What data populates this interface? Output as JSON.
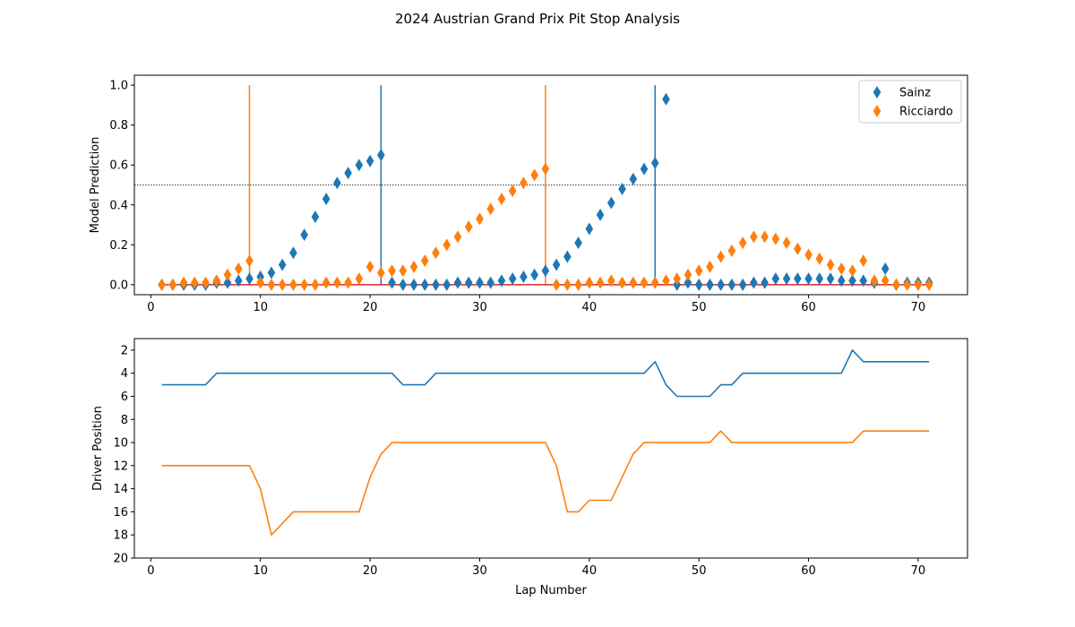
{
  "figure": {
    "title": "2024 Austrian Grand Prix Pit Stop Analysis"
  },
  "colors": {
    "sainz": "#1f77b4",
    "ricciardo": "#ff7f0e",
    "baseline": "#d62728",
    "threshold": "#000000"
  },
  "chart_data": [
    {
      "type": "scatter",
      "title": "",
      "xlabel": "",
      "ylabel": "Model Prediction",
      "xlim": [
        -1.5,
        74.5
      ],
      "ylim": [
        -0.05,
        1.05
      ],
      "x_ticks": [
        "0",
        "10",
        "20",
        "30",
        "40",
        "50",
        "60",
        "70"
      ],
      "y_ticks": [
        "0.0",
        "0.2",
        "0.4",
        "0.6",
        "0.8",
        "1.0"
      ],
      "threshold": 0.5,
      "legend_position": "top-right",
      "x": [
        1,
        2,
        3,
        4,
        5,
        6,
        7,
        8,
        9,
        10,
        11,
        12,
        13,
        14,
        15,
        16,
        17,
        18,
        19,
        20,
        21,
        22,
        23,
        24,
        25,
        26,
        27,
        28,
        29,
        30,
        31,
        32,
        33,
        34,
        35,
        36,
        37,
        38,
        39,
        40,
        41,
        42,
        43,
        44,
        45,
        46,
        47,
        48,
        49,
        50,
        51,
        52,
        53,
        54,
        55,
        56,
        57,
        58,
        59,
        60,
        61,
        62,
        63,
        64,
        65,
        66,
        67,
        68,
        69,
        70,
        71
      ],
      "series": [
        {
          "name": "Sainz",
          "color_key": "sainz",
          "pit_laps": [
            21,
            46
          ],
          "values": [
            0.0,
            0.0,
            0.0,
            0.0,
            0.0,
            0.01,
            0.01,
            0.02,
            0.03,
            0.04,
            0.06,
            0.1,
            0.16,
            0.25,
            0.34,
            0.43,
            0.51,
            0.56,
            0.6,
            0.62,
            0.65,
            0.01,
            0.0,
            0.0,
            0.0,
            0.0,
            0.0,
            0.01,
            0.01,
            0.01,
            0.01,
            0.02,
            0.03,
            0.04,
            0.05,
            0.07,
            0.1,
            0.14,
            0.21,
            0.28,
            0.35,
            0.41,
            0.48,
            0.53,
            0.58,
            0.61,
            0.93,
            0.0,
            0.01,
            0.0,
            0.0,
            0.0,
            0.0,
            0.0,
            0.01,
            0.01,
            0.03,
            0.03,
            0.03,
            0.03,
            0.03,
            0.03,
            0.02,
            0.02,
            0.02,
            0.01,
            0.08,
            0.0,
            0.01,
            0.01,
            0.01
          ]
        },
        {
          "name": "Ricciardo",
          "color_key": "ricciardo",
          "pit_laps": [
            9,
            36
          ],
          "values": [
            0.0,
            0.0,
            0.01,
            0.01,
            0.01,
            0.02,
            0.05,
            0.08,
            0.12,
            0.01,
            0.0,
            0.0,
            0.0,
            0.0,
            0.0,
            0.01,
            0.01,
            0.01,
            0.03,
            0.09,
            0.06,
            0.07,
            0.07,
            0.09,
            0.12,
            0.16,
            0.2,
            0.24,
            0.29,
            0.33,
            0.38,
            0.43,
            0.47,
            0.51,
            0.55,
            0.58,
            0.0,
            0.0,
            0.0,
            0.01,
            0.01,
            0.02,
            0.01,
            0.01,
            0.01,
            0.01,
            0.02,
            0.03,
            0.05,
            0.07,
            0.09,
            0.14,
            0.17,
            0.21,
            0.24,
            0.24,
            0.23,
            0.21,
            0.18,
            0.15,
            0.13,
            0.1,
            0.08,
            0.07,
            0.12,
            0.02,
            0.02,
            0.0,
            0.0,
            0.0,
            0.0
          ]
        }
      ]
    },
    {
      "type": "line",
      "title": "",
      "xlabel": "Lap Number",
      "ylabel": "Driver Position",
      "xlim": [
        -1.5,
        74.5
      ],
      "ylim": [
        20,
        1
      ],
      "x_ticks": [
        "0",
        "10",
        "20",
        "30",
        "40",
        "50",
        "60",
        "70"
      ],
      "y_ticks": [
        "2",
        "4",
        "6",
        "8",
        "10",
        "12",
        "14",
        "16",
        "18",
        "20"
      ],
      "x": [
        1,
        2,
        3,
        4,
        5,
        6,
        7,
        8,
        9,
        10,
        11,
        12,
        13,
        14,
        15,
        16,
        17,
        18,
        19,
        20,
        21,
        22,
        23,
        24,
        25,
        26,
        27,
        28,
        29,
        30,
        31,
        32,
        33,
        34,
        35,
        36,
        37,
        38,
        39,
        40,
        41,
        42,
        43,
        44,
        45,
        46,
        47,
        48,
        49,
        50,
        51,
        52,
        53,
        54,
        55,
        56,
        57,
        58,
        59,
        60,
        61,
        62,
        63,
        64,
        65,
        66,
        67,
        68,
        69,
        70,
        71
      ],
      "series": [
        {
          "color_key": "sainz",
          "values": [
            5,
            5,
            5,
            5,
            5,
            4,
            4,
            4,
            4,
            4,
            4,
            4,
            4,
            4,
            4,
            4,
            4,
            4,
            4,
            4,
            4,
            4,
            5,
            5,
            5,
            4,
            4,
            4,
            4,
            4,
            4,
            4,
            4,
            4,
            4,
            4,
            4,
            4,
            4,
            4,
            4,
            4,
            4,
            4,
            4,
            3,
            5,
            6,
            6,
            6,
            6,
            5,
            5,
            4,
            4,
            4,
            4,
            4,
            4,
            4,
            4,
            4,
            4,
            2,
            3,
            3,
            3,
            3,
            3,
            3,
            3
          ]
        },
        {
          "color_key": "ricciardo",
          "values": [
            12,
            12,
            12,
            12,
            12,
            12,
            12,
            12,
            12,
            14,
            18,
            17,
            16,
            16,
            16,
            16,
            16,
            16,
            16,
            13,
            11,
            10,
            10,
            10,
            10,
            10,
            10,
            10,
            10,
            10,
            10,
            10,
            10,
            10,
            10,
            10,
            12,
            16,
            16,
            15,
            15,
            15,
            13,
            11,
            10,
            10,
            10,
            10,
            10,
            10,
            10,
            9,
            10,
            10,
            10,
            10,
            10,
            10,
            10,
            10,
            10,
            10,
            10,
            10,
            9,
            9,
            9,
            9,
            9,
            9,
            9
          ]
        }
      ]
    }
  ]
}
